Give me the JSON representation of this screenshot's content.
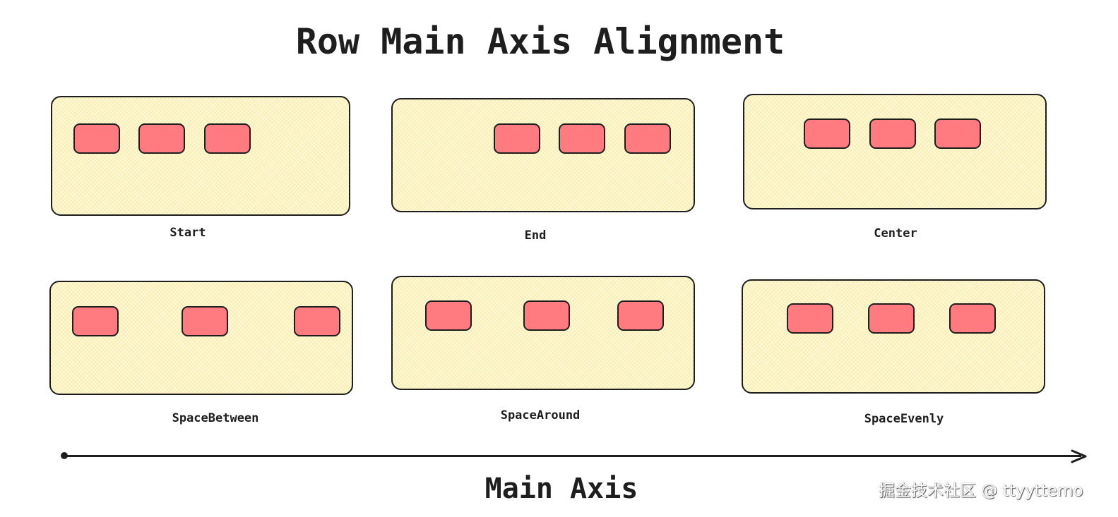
{
  "title": "Row Main Axis Alignment",
  "panels": [
    {
      "label": "Start"
    },
    {
      "label": "End"
    },
    {
      "label": "Center"
    },
    {
      "label": "SpaceBetween"
    },
    {
      "label": "SpaceAround"
    },
    {
      "label": "SpaceEvenly"
    }
  ],
  "axis_label": "Main Axis",
  "watermark": "掘金技术社区 @ ttyyttemo",
  "colors": {
    "panel_fill": "#fdf8d6",
    "item_fill": "#ff7b7f",
    "stroke": "#1e1e1e"
  }
}
